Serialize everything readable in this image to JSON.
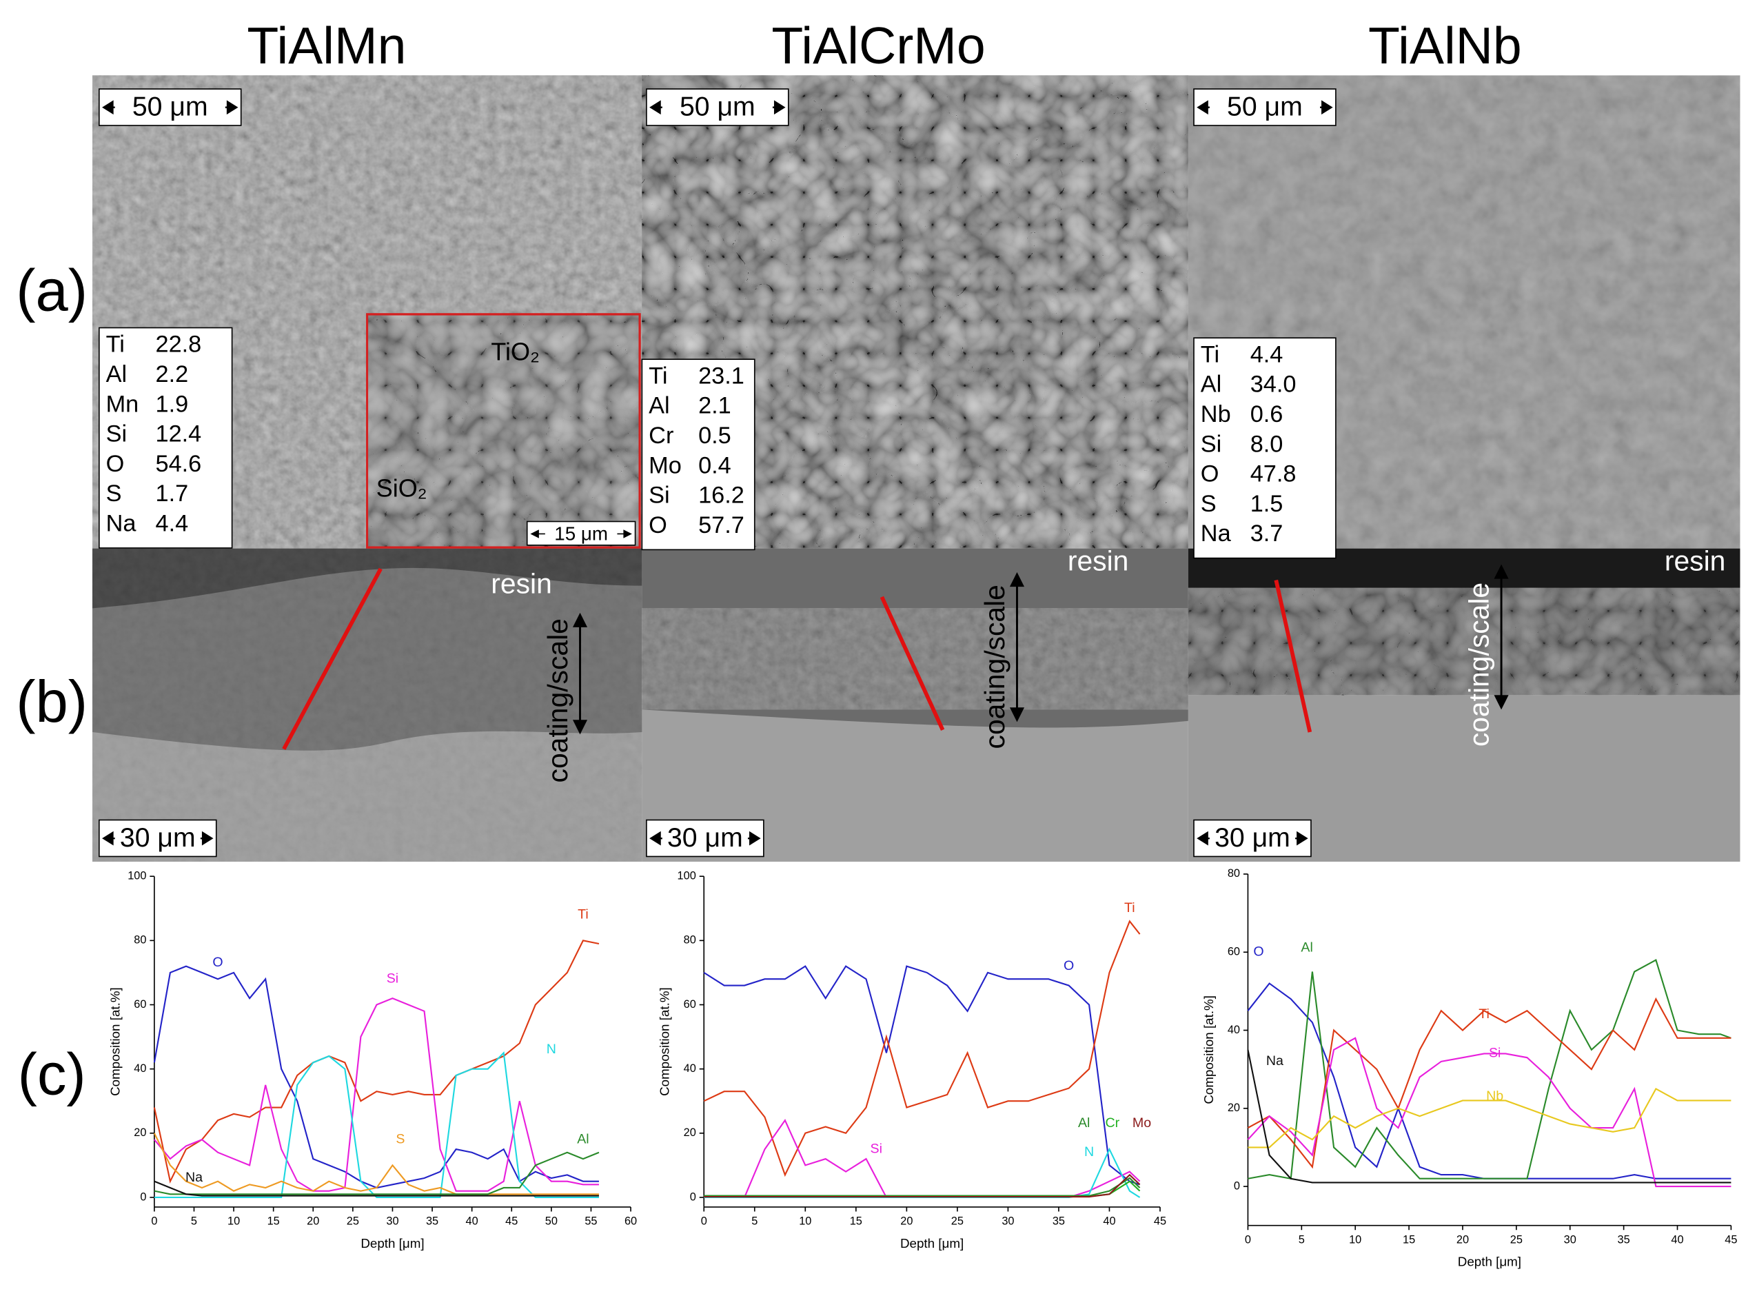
{
  "figure": {
    "columns": [
      {
        "title": "TiAlMn",
        "scale_a": "50 μm",
        "scale_b": "30 μm",
        "resin": "resin",
        "coating": "coating/scale",
        "composition": [
          [
            "Ti",
            "22.8"
          ],
          [
            "Al",
            "2.2"
          ],
          [
            "Mn",
            "1.9"
          ],
          [
            "Si",
            "12.4"
          ],
          [
            "O",
            "54.6"
          ],
          [
            "S",
            "1.7"
          ],
          [
            "Na",
            "4.4"
          ]
        ]
      },
      {
        "title": "TiAlCrMo",
        "scale_a": "50 μm",
        "scale_b": "30 μm",
        "resin": "resin",
        "coating": "coating/scale",
        "composition": [
          [
            "Ti",
            "23.1"
          ],
          [
            "Al",
            "2.1"
          ],
          [
            "Cr",
            "0.5"
          ],
          [
            "Mo",
            "0.4"
          ],
          [
            "Si",
            "16.2"
          ],
          [
            "O",
            "57.7"
          ]
        ]
      },
      {
        "title": "TiAlNb",
        "scale_a": "50 μm",
        "scale_b": "30 μm",
        "resin": "resin",
        "coating": "coating/scale",
        "composition": [
          [
            "Ti",
            "4.4"
          ],
          [
            "Al",
            "34.0"
          ],
          [
            "Nb",
            "0.6"
          ],
          [
            "Si",
            "8.0"
          ],
          [
            "O",
            "47.8"
          ],
          [
            "S",
            "1.5"
          ],
          [
            "Na",
            "3.7"
          ]
        ]
      }
    ],
    "row_labels": [
      "(a)",
      "(b)",
      "(c)"
    ],
    "inset": {
      "phases": [
        "TiO₂",
        "SiO₂"
      ],
      "scale": "15 μm"
    }
  },
  "chart_data": [
    {
      "type": "line",
      "xlabel": "Depth [μm]",
      "ylabel": "Composition [at.%]",
      "xlim": [
        0,
        60
      ],
      "xticks": [
        0,
        5,
        10,
        15,
        20,
        25,
        30,
        35,
        40,
        45,
        50,
        55,
        60
      ],
      "ylim": [
        -3,
        100
      ],
      "yticks": [
        0,
        20,
        40,
        60,
        80,
        100
      ],
      "x": [
        0,
        2,
        4,
        6,
        8,
        10,
        12,
        14,
        16,
        18,
        20,
        22,
        24,
        26,
        28,
        30,
        32,
        34,
        36,
        38,
        40,
        42,
        44,
        46,
        48,
        50,
        52,
        54,
        56
      ],
      "series": [
        {
          "name": "O",
          "color": "#2323c8",
          "values": [
            42,
            70,
            72,
            70,
            68,
            70,
            62,
            68,
            40,
            30,
            12,
            10,
            8,
            5,
            3,
            4,
            5,
            6,
            8,
            15,
            14,
            12,
            15,
            5,
            8,
            6,
            7,
            5,
            5
          ]
        },
        {
          "name": "Ti",
          "color": "#dd3a14",
          "values": [
            28,
            5,
            15,
            18,
            24,
            26,
            25,
            28,
            28,
            38,
            42,
            44,
            42,
            30,
            33,
            32,
            33,
            32,
            32,
            38,
            40,
            42,
            44,
            48,
            60,
            65,
            70,
            80,
            79
          ]
        },
        {
          "name": "Si",
          "color": "#e81fdc",
          "values": [
            18,
            12,
            16,
            18,
            14,
            12,
            10,
            35,
            15,
            5,
            2,
            2,
            3,
            50,
            60,
            62,
            60,
            58,
            15,
            2,
            2,
            2,
            5,
            30,
            10,
            5,
            5,
            4,
            4
          ]
        },
        {
          "name": "N",
          "color": "#1ed8e0",
          "values": [
            0,
            0,
            0,
            0,
            0,
            0,
            0,
            0,
            0,
            35,
            42,
            44,
            40,
            5,
            0,
            0,
            0,
            0,
            0,
            38,
            40,
            40,
            45,
            5,
            0,
            0,
            0,
            0,
            0
          ]
        },
        {
          "name": "S",
          "color": "#ee9a22",
          "values": [
            20,
            10,
            5,
            3,
            5,
            2,
            4,
            3,
            5,
            3,
            2,
            5,
            3,
            2,
            3,
            10,
            4,
            2,
            3,
            1,
            1,
            1,
            1,
            1,
            1,
            1,
            1,
            1,
            1
          ]
        },
        {
          "name": "Al",
          "color": "#2a8a2a",
          "values": [
            2,
            1,
            1,
            1,
            1,
            1,
            1,
            1,
            1,
            1,
            1,
            1,
            1,
            1,
            1,
            1,
            1,
            1,
            1,
            1,
            1,
            1,
            3,
            3,
            10,
            12,
            14,
            12,
            14
          ]
        },
        {
          "name": "Na",
          "color": "#111111",
          "values": [
            5,
            3,
            1,
            0.5,
            0.5,
            0.5,
            0.5,
            0.5,
            0.5,
            0.5,
            0.5,
            0.5,
            0.5,
            0.5,
            0.5,
            0.5,
            0.5,
            0.5,
            0.5,
            0.5,
            0.5,
            0.5,
            0.5,
            0.5,
            0.5,
            0.5,
            0.5,
            0.5,
            0.5
          ]
        }
      ]
    },
    {
      "type": "line",
      "xlabel": "Depth [μm]",
      "ylabel": "Composition [at.%]",
      "xlim": [
        0,
        45
      ],
      "xticks": [
        0,
        5,
        10,
        15,
        20,
        25,
        30,
        35,
        40,
        45
      ],
      "ylim": [
        -3,
        100
      ],
      "yticks": [
        0,
        20,
        40,
        60,
        80,
        100
      ],
      "x": [
        0,
        2,
        4,
        6,
        8,
        10,
        12,
        14,
        16,
        18,
        20,
        22,
        24,
        26,
        28,
        30,
        32,
        34,
        36,
        38,
        40,
        42,
        43
      ],
      "series": [
        {
          "name": "O",
          "color": "#2323c8",
          "values": [
            70,
            66,
            66,
            68,
            68,
            72,
            62,
            72,
            68,
            45,
            72,
            70,
            66,
            58,
            70,
            68,
            68,
            68,
            66,
            60,
            10,
            5,
            4
          ]
        },
        {
          "name": "Ti",
          "color": "#dd3a14",
          "values": [
            30,
            33,
            33,
            25,
            7,
            20,
            22,
            20,
            28,
            50,
            28,
            30,
            32,
            45,
            28,
            30,
            30,
            32,
            34,
            40,
            70,
            86,
            82
          ]
        },
        {
          "name": "Si",
          "color": "#e81fdc",
          "values": [
            0,
            0,
            0,
            15,
            24,
            10,
            12,
            8,
            12,
            0,
            0,
            0,
            0,
            0,
            0,
            0,
            0,
            0,
            0,
            2,
            5,
            8,
            5
          ]
        },
        {
          "name": "N",
          "color": "#1ed8e0",
          "values": [
            0,
            0,
            0,
            0,
            0,
            0,
            0,
            0,
            0,
            0,
            0,
            0,
            0,
            0,
            0,
            0,
            0,
            0,
            0,
            1,
            15,
            2,
            0
          ]
        },
        {
          "name": "Al",
          "color": "#2a8a2a",
          "values": [
            0.5,
            0.5,
            0.5,
            0.5,
            0.5,
            0.5,
            0.5,
            0.5,
            0.5,
            0.5,
            0.5,
            0.5,
            0.5,
            0.5,
            0.5,
            0.5,
            0.5,
            0.5,
            0.5,
            0.5,
            2,
            6,
            3
          ]
        },
        {
          "name": "Cr",
          "color": "#22b022",
          "values": [
            0.3,
            0.3,
            0.3,
            0.3,
            0.3,
            0.3,
            0.3,
            0.3,
            0.3,
            0.3,
            0.3,
            0.3,
            0.3,
            0.3,
            0.3,
            0.3,
            0.3,
            0.3,
            0.3,
            0.3,
            1,
            5,
            2
          ]
        },
        {
          "name": "Mo",
          "color": "#8b1a1a",
          "values": [
            0.2,
            0.2,
            0.2,
            0.2,
            0.2,
            0.2,
            0.2,
            0.2,
            0.2,
            0.2,
            0.2,
            0.2,
            0.2,
            0.2,
            0.2,
            0.2,
            0.2,
            0.2,
            0.2,
            0.2,
            1,
            7,
            4
          ]
        }
      ]
    },
    {
      "type": "line",
      "xlabel": "Depth [μm]",
      "ylabel": "Composition [at.%]",
      "xlim": [
        0,
        45
      ],
      "xticks": [
        0,
        5,
        10,
        15,
        20,
        25,
        30,
        35,
        40,
        45
      ],
      "ylim": [
        -10,
        80
      ],
      "yticks": [
        0,
        20,
        40,
        60,
        80
      ],
      "x": [
        0,
        2,
        4,
        6,
        8,
        10,
        12,
        14,
        16,
        18,
        20,
        22,
        24,
        26,
        28,
        30,
        32,
        34,
        36,
        38,
        40,
        42,
        44,
        45
      ],
      "series": [
        {
          "name": "O",
          "color": "#2323c8",
          "values": [
            45,
            52,
            48,
            42,
            28,
            10,
            5,
            20,
            5,
            3,
            3,
            2,
            2,
            2,
            2,
            2,
            2,
            2,
            3,
            2,
            2,
            2,
            2,
            2
          ]
        },
        {
          "name": "Al",
          "color": "#2a8a2a",
          "values": [
            2,
            3,
            2,
            55,
            10,
            5,
            15,
            8,
            2,
            2,
            2,
            2,
            2,
            2,
            25,
            45,
            35,
            40,
            55,
            58,
            40,
            39,
            39,
            38
          ]
        },
        {
          "name": "Ti",
          "color": "#dd3a14",
          "values": [
            15,
            18,
            12,
            5,
            40,
            35,
            30,
            20,
            35,
            45,
            40,
            45,
            42,
            45,
            40,
            35,
            30,
            40,
            35,
            48,
            38,
            38,
            38,
            38
          ]
        },
        {
          "name": "Si",
          "color": "#e81fdc",
          "values": [
            12,
            18,
            14,
            8,
            35,
            38,
            20,
            15,
            28,
            32,
            33,
            34,
            34,
            33,
            28,
            20,
            15,
            15,
            25,
            0,
            0,
            0,
            0,
            0
          ]
        },
        {
          "name": "Nb",
          "color": "#e8c81e",
          "values": [
            10,
            10,
            15,
            12,
            18,
            15,
            18,
            20,
            18,
            20,
            22,
            22,
            22,
            20,
            18,
            16,
            15,
            14,
            15,
            25,
            22,
            22,
            22,
            22
          ]
        },
        {
          "name": "Na",
          "color": "#111111",
          "values": [
            35,
            8,
            2,
            1,
            1,
            1,
            1,
            1,
            1,
            1,
            1,
            1,
            1,
            1,
            1,
            1,
            1,
            1,
            1,
            1,
            1,
            1,
            1,
            1
          ]
        }
      ]
    }
  ]
}
